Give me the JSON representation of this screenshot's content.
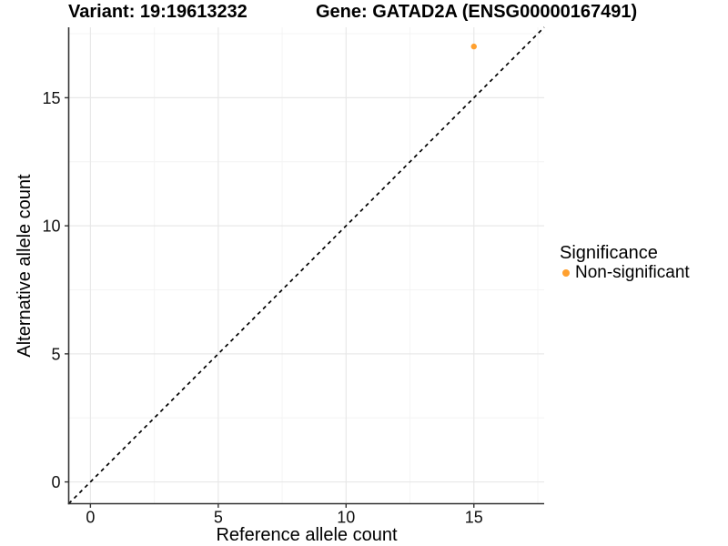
{
  "chart_data": {
    "type": "scatter",
    "titles": {
      "left": "Variant: 19:19613232",
      "right": "Gene: GATAD2A (ENSG00000167491)"
    },
    "xlabel": "Reference allele count",
    "ylabel": "Alternative allele count",
    "xlim": [
      -0.85,
      17.75
    ],
    "ylim": [
      -0.85,
      17.75
    ],
    "x_ticks": [
      0,
      5,
      10,
      15
    ],
    "y_ticks": [
      0,
      5,
      10,
      15
    ],
    "x_minor_ticks": [
      2.5,
      7.5,
      12.5,
      17.5
    ],
    "y_minor_ticks": [
      2.5,
      7.5,
      12.5,
      17.5
    ],
    "grid": "major+minor",
    "identity_line": {
      "style": "dashed",
      "color": "#000000",
      "from": [
        -0.85,
        -0.85
      ],
      "to": [
        17.75,
        17.75
      ]
    },
    "series": [
      {
        "name": "Non-significant",
        "color": "#FFA02E",
        "points": [
          {
            "x": 15,
            "y": 17
          }
        ]
      }
    ],
    "legend": {
      "title": "Significance",
      "position": "right",
      "items": [
        {
          "label": "Non-significant",
          "color": "#FFA02E"
        }
      ]
    },
    "style": {
      "background": "#ffffff",
      "axis_color": "#333333",
      "text_color": "#111111",
      "grid_major": "#e8e8e8",
      "grid_minor": "#f4f4f4",
      "point_color": "#FFA02E"
    }
  }
}
